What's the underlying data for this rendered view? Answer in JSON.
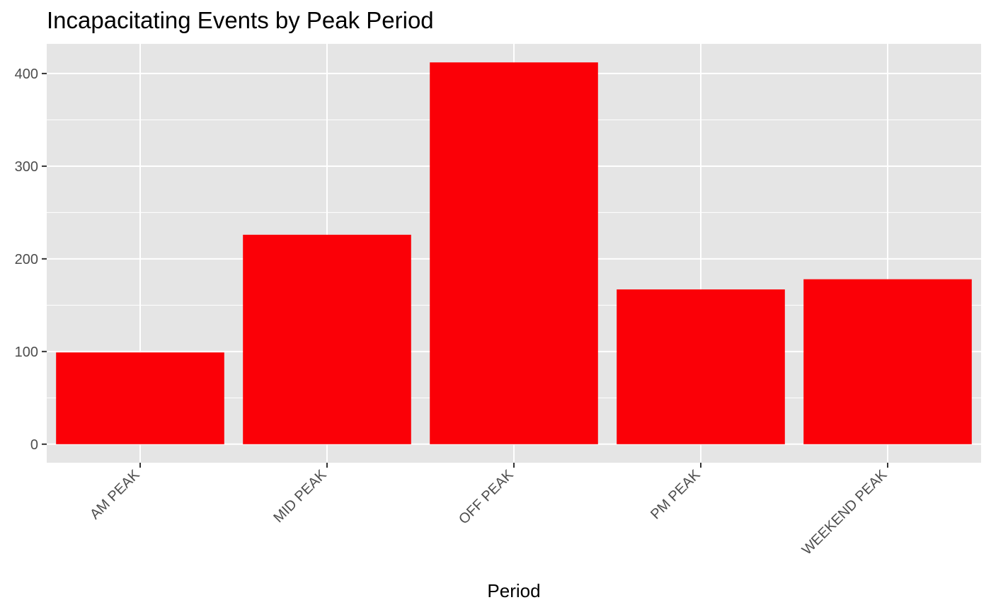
{
  "chart_data": {
    "type": "bar",
    "title": "Incapacitating Events by Peak Period",
    "xlabel": "Period",
    "ylabel": "",
    "categories": [
      "AM PEAK",
      "MID PEAK",
      "OFF PEAK",
      "PM PEAK",
      "WEEKEND PEAK"
    ],
    "values": [
      99,
      226,
      412,
      167,
      178
    ],
    "ylim": [
      -20,
      432
    ],
    "yticks": [
      0,
      100,
      200,
      300,
      400
    ],
    "grid": true,
    "legend": "none",
    "colors": {
      "bar": "#fb0007",
      "panel_background": "#e5e5e5",
      "grid": "#ffffff",
      "tick_text": "#4d4d4d",
      "title_text": "#000000"
    }
  }
}
